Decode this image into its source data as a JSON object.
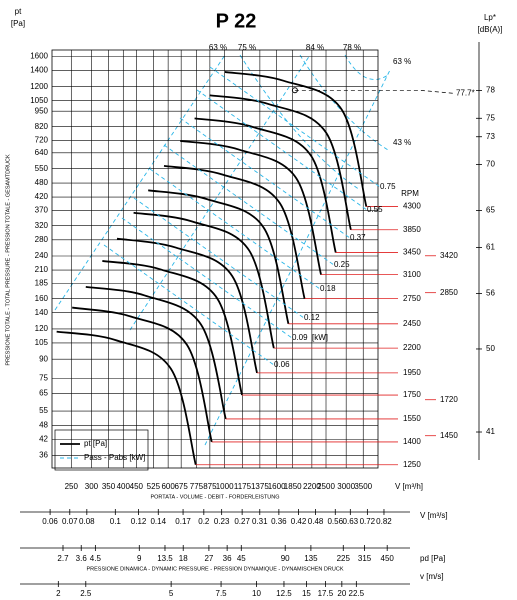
{
  "chart_data": {
    "type": "fan-curve",
    "title": "P 22",
    "y_label": "pt",
    "y_unit": "[Pa]",
    "y_title": "PRESSIONE TOTALE - TOTAL PRESSURE - PRESSION TOTALE - GESAMTDRUCK",
    "x_label": "V [m³/h]",
    "x_title": "PORTATA - VOLUME - DEBIT - FORDERLEISTUNG",
    "log_x": true,
    "log_y": true,
    "grid": true,
    "xlim": [
      210,
      4000
    ],
    "ylim": [
      32,
      1700
    ],
    "xticks": [
      250,
      300,
      350,
      400,
      450,
      525,
      600,
      675,
      775,
      875,
      1000,
      1175,
      1375,
      1600,
      1850,
      2200,
      2500,
      3000,
      3500
    ],
    "yticks": [
      36,
      42,
      48,
      55,
      65,
      75,
      90,
      105,
      120,
      140,
      160,
      185,
      210,
      240,
      280,
      320,
      370,
      420,
      480,
      550,
      640,
      720,
      820,
      950,
      1050,
      1200,
      1400,
      1600
    ],
    "rpm_label": "RPM",
    "series": [
      {
        "name": "4300",
        "color": "#000000",
        "x": [
          1000,
          1700,
          2880,
          3600
        ],
        "values": [
          1380,
          1270,
          966,
          384
        ]
      },
      {
        "name": "3850",
        "color": "#000000",
        "x": [
          872,
          1482,
          2504,
          3130
        ],
        "values": [
          1106,
          1018,
          774,
          308
        ]
      },
      {
        "name": "3450",
        "color": "#000000",
        "x": [
          762,
          1295,
          2184,
          2730
        ],
        "values": [
          888,
          817,
          622,
          248
        ]
      },
      {
        "name": "3100",
        "color": "#000000",
        "x": [
          669,
          1137,
          1912,
          2390
        ],
        "values": [
          717,
          660,
          502,
          201
        ]
      },
      {
        "name": "2750",
        "color": "#000000",
        "x": [
          578,
          983,
          1648,
          2060
        ],
        "values": [
          565,
          520,
          396,
          160
        ]
      },
      {
        "name": "2450",
        "color": "#000000",
        "x": [
          501,
          852,
          1424,
          1780
        ],
        "values": [
          448,
          412,
          314,
          126
        ]
      },
      {
        "name": "2200",
        "color": "#000000",
        "x": [
          439,
          746,
          1248,
          1560
        ],
        "values": [
          362,
          333,
          253,
          100
        ]
      },
      {
        "name": "1950",
        "color": "#000000",
        "x": [
          378,
          643,
          1072,
          1340
        ],
        "values": [
          283,
          260,
          198,
          79
        ]
      },
      {
        "name": "1750",
        "color": "#000000",
        "x": [
          331,
          563,
          936,
          1170
        ],
        "values": [
          229,
          211,
          160,
          64
        ]
      },
      {
        "name": "1550",
        "color": "#000000",
        "x": [
          285,
          485,
          808,
          1010
        ],
        "values": [
          179,
          165,
          125,
          51
        ]
      },
      {
        "name": "1400",
        "color": "#000000",
        "x": [
          252,
          428,
          712,
          890
        ],
        "values": [
          147,
          135,
          103,
          41
        ]
      },
      {
        "name": "1250",
        "color": "#000000",
        "x": [
          219,
          372,
          616,
          770
        ],
        "values": [
          117,
          108,
          82,
          33
        ]
      }
    ],
    "legend": [
      {
        "label": "pt [Pa]",
        "color": "#000000"
      },
      {
        "label": "Pass - Pabs [kW]",
        "color": "#29b6e8"
      }
    ],
    "power_labels": [
      0.06,
      0.09,
      0.12,
      0.18,
      0.25,
      0.37,
      0.55,
      0.75
    ],
    "power_unit": "[kW]",
    "efficiency_labels": [
      "63 %",
      "75 %",
      "84 %",
      "78 %",
      "63 %",
      "43 %"
    ],
    "operating_point": {
      "x": 1887,
      "y": 1159,
      "lp": 77.7,
      "lp_label": "77.7*"
    },
    "lp_axis": {
      "label": "Lp*",
      "unit": "[dB(A)]",
      "lim": [
        37.1,
        82.4
      ],
      "ticks": [
        78,
        75,
        73,
        70,
        65,
        61,
        56,
        50,
        41
      ]
    },
    "rpm_marks": {
      "rpm": [
        3420,
        2850,
        1720,
        1450
      ],
      "lp": [
        60.1,
        56.1,
        44.5,
        40.6
      ]
    },
    "bottom_axes": [
      {
        "label": "V [m³/s]",
        "lim": [
          0.0609,
          0.894
        ],
        "ticks": [
          0.06,
          0.07,
          0.08,
          0.1,
          0.12,
          0.14,
          0.17,
          0.2,
          0.23,
          0.27,
          0.31,
          0.36,
          0.42,
          0.48,
          0.56,
          0.63,
          0.72,
          0.82
        ]
      },
      {
        "label": "pd [Pa]",
        "title": "PRESSIONE DINAMICA - DYNAMIC PRESSURE - PRESSION DYNAMIQUE - DYNAMISCHEN DRUCK",
        "lim": [
          2.27,
          509
        ],
        "ticks": [
          2.7,
          3.6,
          4.5,
          9,
          13.5,
          18,
          27,
          36,
          45,
          90,
          135,
          225,
          315,
          450
        ]
      },
      {
        "label": "v [m/s]",
        "lim": [
          1.9,
          30.8
        ],
        "ticks": [
          2,
          2.5,
          5,
          7.5,
          10,
          12.5,
          15,
          17.5,
          20,
          22.5
        ]
      }
    ]
  }
}
